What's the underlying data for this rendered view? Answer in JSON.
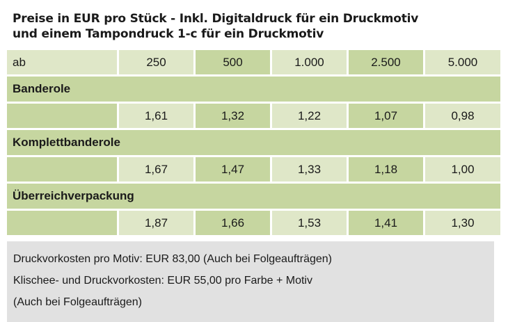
{
  "title": {
    "line1": "Preise in EUR pro Stück - Inkl. Digitaldruck für ein Druckmotiv",
    "line2": "und einem Tampondruck 1-c für ein Druckmotiv"
  },
  "quantity_row": {
    "label": "ab",
    "quantities": [
      "250",
      "500",
      "1.000",
      "2.500",
      "5.000"
    ]
  },
  "sections": [
    {
      "name": "Banderole",
      "prices": [
        "1,61",
        "1,32",
        "1,22",
        "1,07",
        "0,98"
      ]
    },
    {
      "name": "Komplettbanderole",
      "prices": [
        "1,67",
        "1,47",
        "1,33",
        "1,18",
        "1,00"
      ]
    },
    {
      "name": "Überreichverpackung",
      "prices": [
        "1,87",
        "1,66",
        "1,53",
        "1,41",
        "1,30"
      ]
    }
  ],
  "notes": [
    "Druckvorkosten pro Motiv: EUR 83,00 (Auch bei Folgeaufträgen)",
    "Klischee- und Druckvorkosten: EUR 55,00 pro Farbe + Motiv",
    "(Auch bei Folgeaufträgen)"
  ],
  "colors": {
    "light_green": "#dfe7c8",
    "dark_green": "#c6d6a0",
    "notes_gray": "#e1e1e1"
  }
}
